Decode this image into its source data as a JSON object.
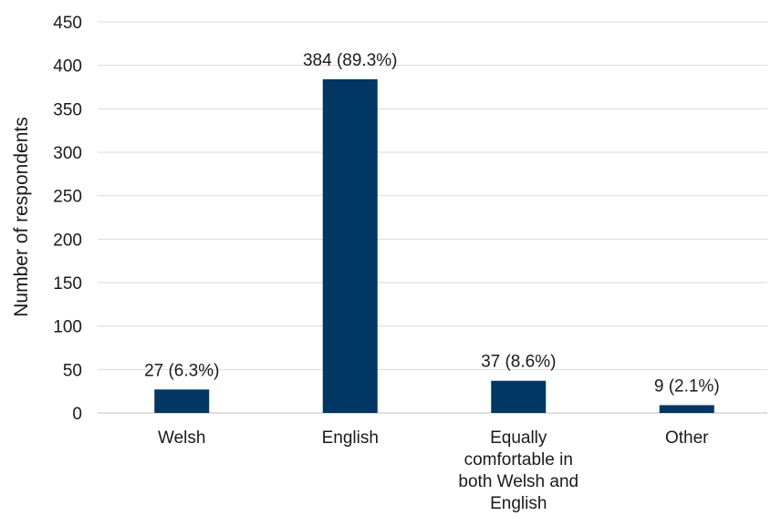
{
  "chart_data": {
    "type": "bar",
    "title": "",
    "xlabel": "",
    "ylabel": "Number of respondents",
    "ylim": [
      0,
      450
    ],
    "yticks": [
      0,
      50,
      100,
      150,
      200,
      250,
      300,
      350,
      400,
      450
    ],
    "grid": true,
    "legend": "none",
    "bar_color": "#003764",
    "categories": [
      [
        "Welsh"
      ],
      [
        "English"
      ],
      [
        "Equally",
        "comfortable in",
        "both Welsh and",
        "English"
      ],
      [
        "Other"
      ]
    ],
    "values": [
      27,
      384,
      37,
      9
    ],
    "data_labels": [
      "27 (6.3%)",
      "384 (89.3%)",
      "37 (8.6%)",
      "9 (2.1%)"
    ]
  }
}
